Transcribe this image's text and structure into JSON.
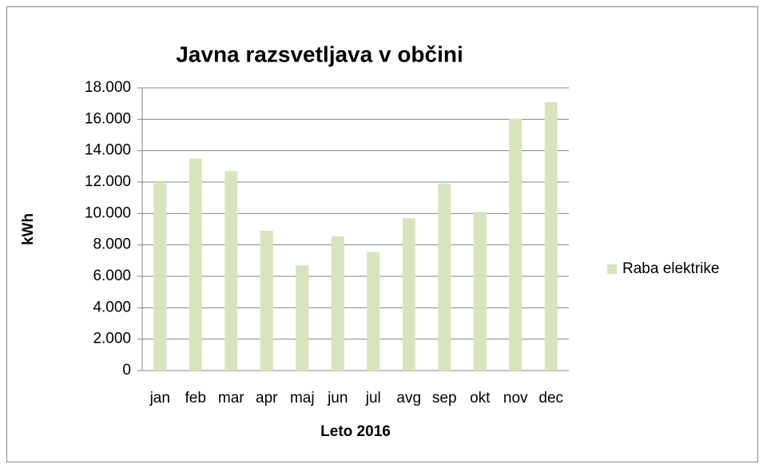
{
  "chart_data": {
    "type": "bar",
    "title": "Javna razsvetljava v občini",
    "x_label": "Leto 2016",
    "y_label": "kWh",
    "categories": [
      "jan",
      "feb",
      "mar",
      "apr",
      "maj",
      "jun",
      "jul",
      "avg",
      "sep",
      "okt",
      "nov",
      "dec"
    ],
    "series": [
      {
        "name": "Raba elektrike",
        "color": "#d7e4bd",
        "values": [
          12000,
          13500,
          12700,
          8900,
          6700,
          8550,
          7550,
          9700,
          11900,
          10100,
          16050,
          17100
        ]
      }
    ],
    "ylim": [
      0,
      18000
    ],
    "yticks": [
      0,
      {
        "value": 2000,
        "label": "2.000"
      },
      {
        "value": 4000,
        "label": "4.000"
      },
      {
        "value": 6000,
        "label": "6.000"
      },
      {
        "value": 8000,
        "label": "8.000"
      },
      {
        "value": 10000,
        "label": "10.000"
      },
      {
        "value": 12000,
        "label": "12.000"
      },
      {
        "value": 14000,
        "label": "14.000"
      },
      {
        "value": 16000,
        "label": "16.000"
      },
      {
        "value": 18000,
        "label": "18.000"
      }
    ],
    "grid": true,
    "legend": "right"
  }
}
